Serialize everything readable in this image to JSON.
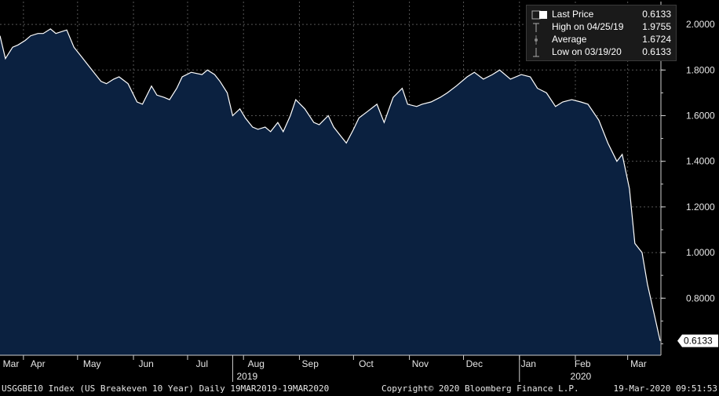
{
  "chart_data": {
    "type": "area",
    "x_start": "2019-03-19",
    "x_end": "2020-03-19",
    "ylim": [
      0.55,
      2.1
    ],
    "y_ticks": [
      "2.0000",
      "1.8000",
      "1.6000",
      "1.4000",
      "1.2000",
      "1.0000",
      "0.8000"
    ],
    "x_month_labels": [
      {
        "label": "Mar",
        "date": "2019-03-19"
      },
      {
        "label": "Apr",
        "date": "2019-04-09"
      },
      {
        "label": "May",
        "date": "2019-05-09"
      },
      {
        "label": "Jun",
        "date": "2019-06-08"
      },
      {
        "label": "Jul",
        "date": "2019-07-09"
      },
      {
        "label": "Aug",
        "date": "2019-08-08"
      },
      {
        "label": "Sep",
        "date": "2019-09-07"
      },
      {
        "label": "Oct",
        "date": "2019-10-08"
      },
      {
        "label": "Nov",
        "date": "2019-11-07"
      },
      {
        "label": "Dec",
        "date": "2019-12-07"
      },
      {
        "label": "Jan",
        "date": "2020-01-06"
      },
      {
        "label": "Feb",
        "date": "2020-02-05"
      },
      {
        "label": "Mar",
        "date": "2020-03-07"
      }
    ],
    "year_labels": [
      {
        "label": "2019",
        "date": "2019-08-03"
      },
      {
        "label": "2020",
        "date": "2020-02-04"
      }
    ],
    "year_divider_dates": [
      "2019-07-26",
      "2020-01-01"
    ],
    "last_value_label": "0.6133",
    "series": [
      {
        "name": "Last Price",
        "x": [
          "2019-03-19",
          "2019-03-22",
          "2019-03-26",
          "2019-03-29",
          "2019-04-02",
          "2019-04-05",
          "2019-04-09",
          "2019-04-12",
          "2019-04-16",
          "2019-04-19",
          "2019-04-25",
          "2019-04-29",
          "2019-05-03",
          "2019-05-07",
          "2019-05-10",
          "2019-05-14",
          "2019-05-17",
          "2019-05-21",
          "2019-05-24",
          "2019-05-29",
          "2019-06-03",
          "2019-06-06",
          "2019-06-11",
          "2019-06-14",
          "2019-06-18",
          "2019-06-21",
          "2019-06-25",
          "2019-06-28",
          "2019-07-03",
          "2019-07-09",
          "2019-07-12",
          "2019-07-16",
          "2019-07-19",
          "2019-07-23",
          "2019-07-26",
          "2019-07-30",
          "2019-08-02",
          "2019-08-06",
          "2019-08-09",
          "2019-08-13",
          "2019-08-16",
          "2019-08-20",
          "2019-08-23",
          "2019-08-27",
          "2019-08-30",
          "2019-09-04",
          "2019-09-09",
          "2019-09-12",
          "2019-09-17",
          "2019-09-20",
          "2019-09-24",
          "2019-09-27",
          "2019-10-01",
          "2019-10-04",
          "2019-10-09",
          "2019-10-14",
          "2019-10-18",
          "2019-10-23",
          "2019-10-28",
          "2019-10-31",
          "2019-11-05",
          "2019-11-08",
          "2019-11-13",
          "2019-11-18",
          "2019-11-22",
          "2019-11-27",
          "2019-12-03",
          "2019-12-07",
          "2019-12-12",
          "2019-12-17",
          "2019-12-21",
          "2019-12-27",
          "2020-01-02",
          "2020-01-07",
          "2020-01-11",
          "2020-01-16",
          "2020-01-21",
          "2020-01-25",
          "2020-01-30",
          "2020-02-04",
          "2020-02-08",
          "2020-02-14",
          "2020-02-19",
          "2020-02-24",
          "2020-02-27",
          "2020-03-02",
          "2020-03-05",
          "2020-03-09",
          "2020-03-12",
          "2020-03-16",
          "2020-03-19"
        ],
        "values": [
          1.95,
          1.85,
          1.9,
          1.91,
          1.93,
          1.95,
          1.96,
          1.96,
          1.98,
          1.96,
          1.9755,
          1.9,
          1.86,
          1.82,
          1.79,
          1.75,
          1.74,
          1.76,
          1.77,
          1.74,
          1.66,
          1.65,
          1.73,
          1.69,
          1.68,
          1.67,
          1.72,
          1.77,
          1.79,
          1.78,
          1.8,
          1.78,
          1.75,
          1.7,
          1.6,
          1.63,
          1.59,
          1.55,
          1.54,
          1.55,
          1.53,
          1.57,
          1.53,
          1.6,
          1.67,
          1.63,
          1.57,
          1.56,
          1.6,
          1.55,
          1.51,
          1.48,
          1.54,
          1.59,
          1.62,
          1.65,
          1.57,
          1.68,
          1.72,
          1.65,
          1.64,
          1.65,
          1.66,
          1.68,
          1.7,
          1.73,
          1.77,
          1.79,
          1.76,
          1.78,
          1.8,
          1.76,
          1.78,
          1.77,
          1.72,
          1.7,
          1.64,
          1.66,
          1.67,
          1.66,
          1.65,
          1.58,
          1.48,
          1.4,
          1.43,
          1.28,
          1.04,
          1.0,
          0.86,
          0.72,
          0.6133
        ]
      }
    ]
  },
  "legend": {
    "items": [
      {
        "label": "Last Price",
        "value": "0.6133"
      },
      {
        "label": "High on 04/25/19",
        "value": "1.9755"
      },
      {
        "label": "Average",
        "value": "1.6724"
      },
      {
        "label": "Low on 03/19/20",
        "value": "0.6133"
      }
    ]
  },
  "footer": {
    "left": "USGGBE10 Index (US Breakeven 10 Year)  Daily 19MAR2019-19MAR2020",
    "center": "Copyright© 2020 Bloomberg Finance L.P.",
    "right": "19-Mar-2020 09:51:53"
  },
  "colors": {
    "background": "#000000",
    "area_fill": "#0b2140",
    "line": "#ffffff",
    "grid": "#555555"
  }
}
